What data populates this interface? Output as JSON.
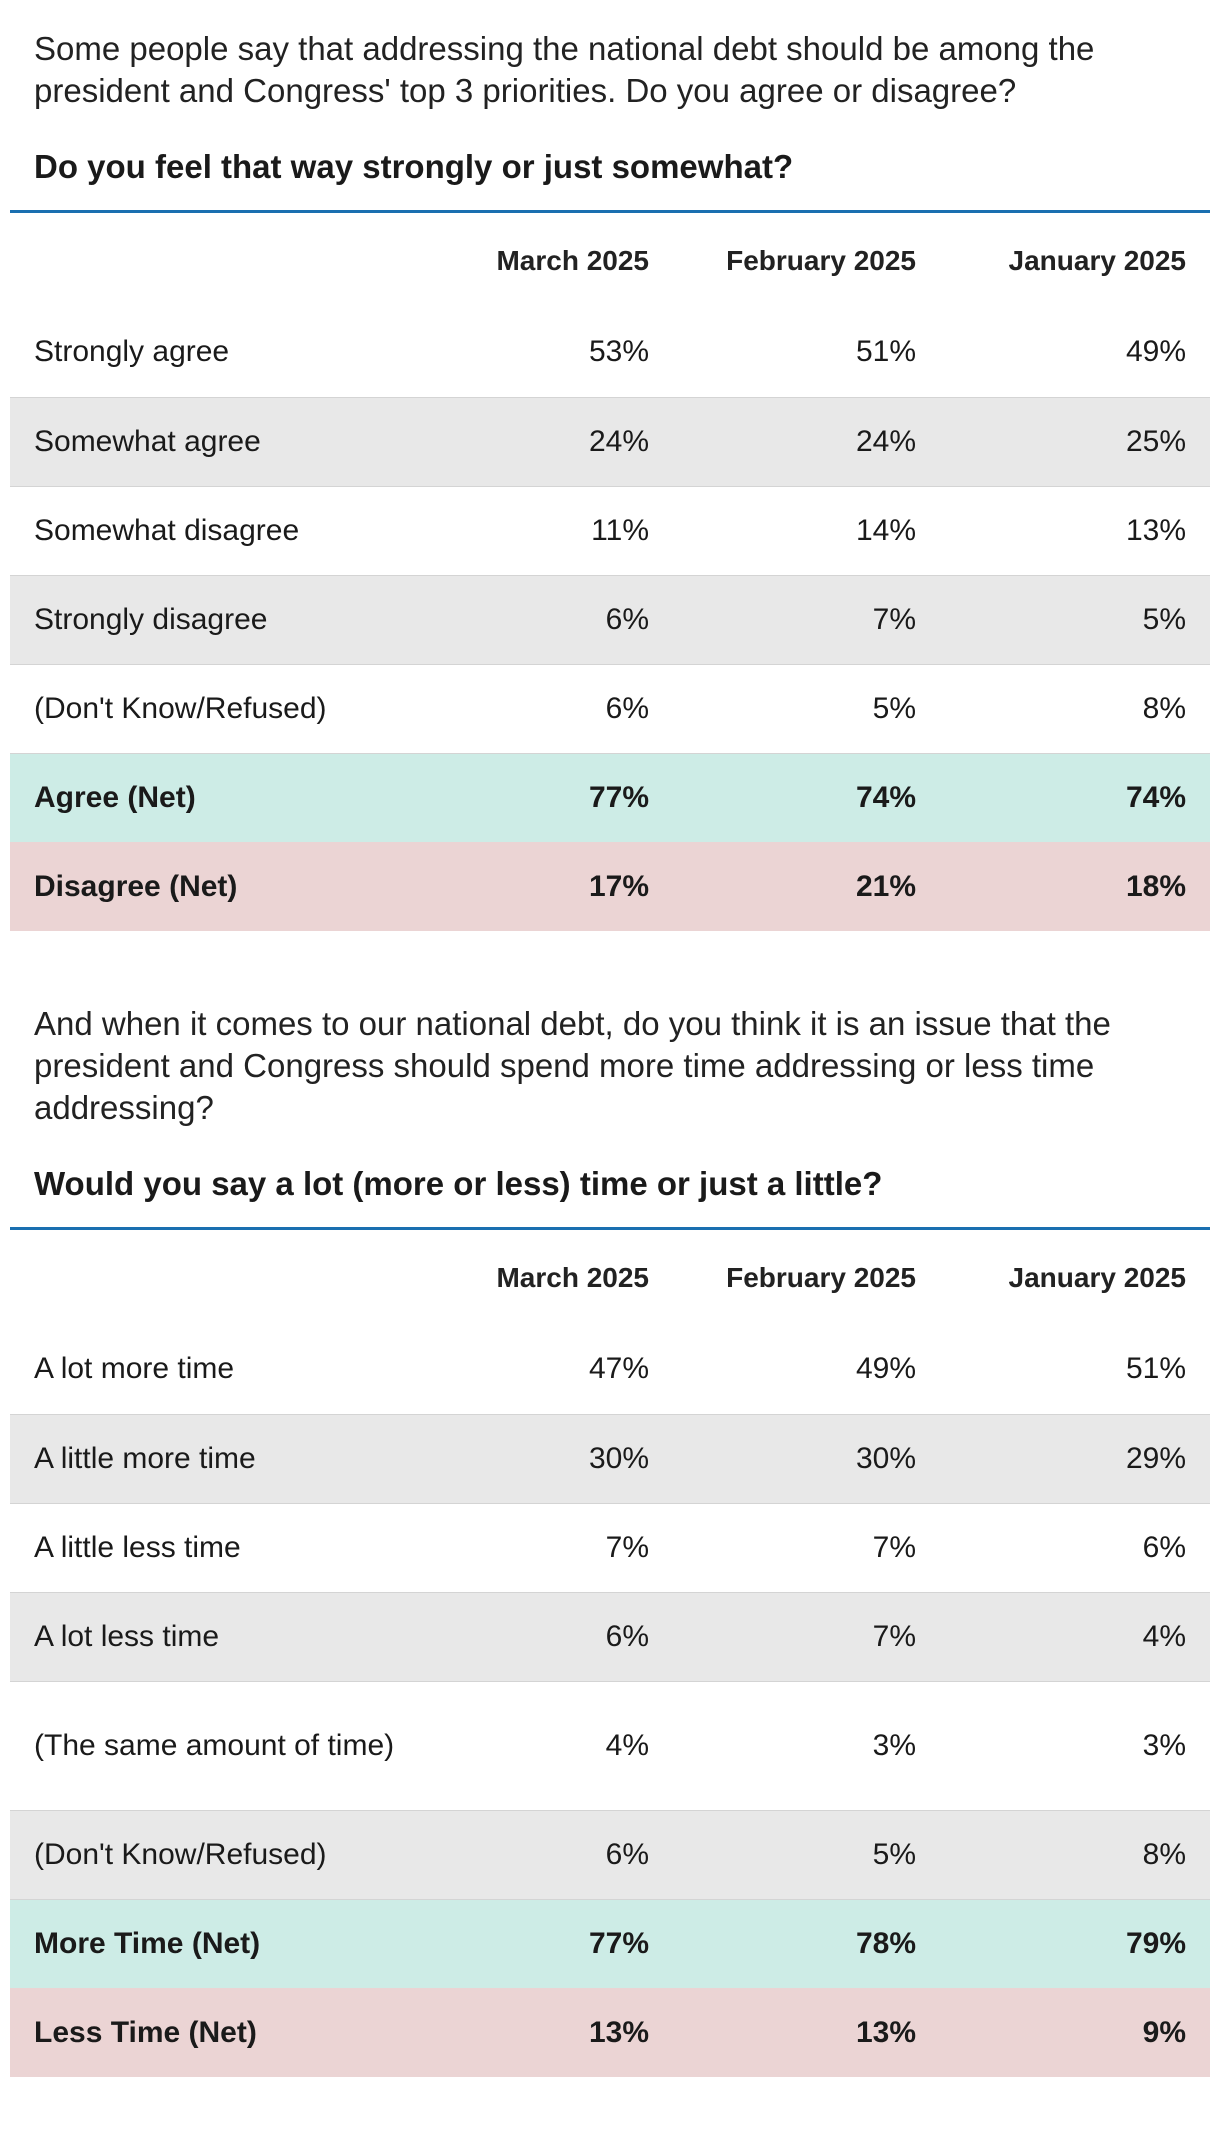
{
  "section1": {
    "question": "Some people say that addressing the national debt should be among the president and Congress' top 3 priorities. Do you agree or disagree?",
    "subquestion": "Do you feel that way strongly or just somewhat?",
    "columns": [
      "March 2025",
      "February 2025",
      "January 2025"
    ],
    "rows": [
      {
        "label": "Strongly agree",
        "values": [
          "53%",
          "51%",
          "49%"
        ]
      },
      {
        "label": "Somewhat agree",
        "values": [
          "24%",
          "24%",
          "25%"
        ]
      },
      {
        "label": "Somewhat disagree",
        "values": [
          "11%",
          "14%",
          "13%"
        ]
      },
      {
        "label": "Strongly disagree",
        "values": [
          "6%",
          "7%",
          "5%"
        ]
      },
      {
        "label": "(Don't Know/Refused)",
        "values": [
          "6%",
          "5%",
          "8%"
        ]
      },
      {
        "label": "Agree (Net)",
        "values": [
          "77%",
          "74%",
          "74%"
        ]
      },
      {
        "label": "Disagree (Net)",
        "values": [
          "17%",
          "21%",
          "18%"
        ]
      }
    ]
  },
  "section2": {
    "question": "And when it comes to our national debt, do you think it is an issue that the president and Congress should spend more time addressing or less time addressing?",
    "subquestion": "Would you say a lot (more or less) time or just a little?",
    "columns": [
      "March 2025",
      "February 2025",
      "January 2025"
    ],
    "rows": [
      {
        "label": "A lot more time",
        "values": [
          "47%",
          "49%",
          "51%"
        ]
      },
      {
        "label": "A little more time",
        "values": [
          "30%",
          "30%",
          "29%"
        ]
      },
      {
        "label": "A little less time",
        "values": [
          "7%",
          "7%",
          "6%"
        ]
      },
      {
        "label": "A lot less time",
        "values": [
          "6%",
          "7%",
          "4%"
        ]
      },
      {
        "label": "(The same amount of time)",
        "values": [
          "4%",
          "3%",
          "3%"
        ]
      },
      {
        "label": "(Don't Know/Refused)",
        "values": [
          "6%",
          "5%",
          "8%"
        ]
      },
      {
        "label": "More Time (Net)",
        "values": [
          "77%",
          "78%",
          "79%"
        ]
      },
      {
        "label": "Less Time (Net)",
        "values": [
          "13%",
          "13%",
          "9%"
        ]
      }
    ]
  },
  "colors": {
    "header_rule": "#1a6fb0",
    "alt_row": "#e8e8e8",
    "net_positive": "#cdece6",
    "net_negative": "#ebd4d4"
  }
}
